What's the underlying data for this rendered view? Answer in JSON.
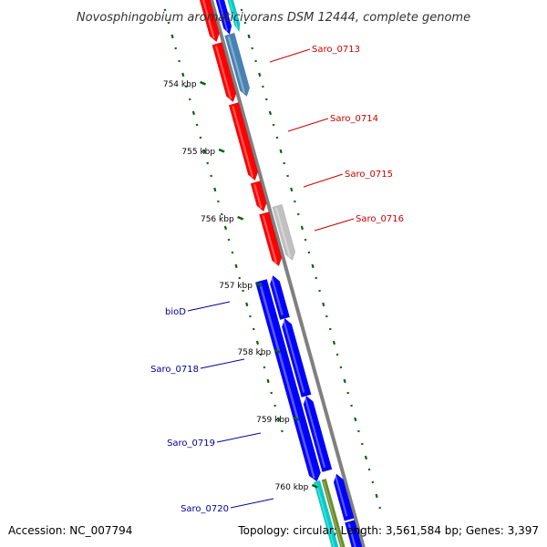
{
  "title": "Novosphingobium aromaticivorans DSM 12444, complete genome",
  "footer": {
    "accession": "Accession: NC_007794",
    "summary": "Topology: circular; Length: 3,561,584 bp; Genes: 3,397"
  },
  "colors": {
    "background": "#ffffff",
    "backbone": "#808080",
    "gene_red": "#ff0000",
    "gene_blue": "#0000ff",
    "gene_steelblue": "#4682b4",
    "gene_gray": "#c0c0c0",
    "gene_cyan": "#00cccc",
    "gene_olive": "#6b8e23",
    "tick_green": "#006400",
    "label_red": "#cc0000",
    "label_blue": "#000099"
  },
  "ticks": [
    {
      "label": "754 kbp"
    },
    {
      "label": "755 kbp"
    },
    {
      "label": "756 kbp"
    },
    {
      "label": "757 kbp"
    },
    {
      "label": "758 kbp"
    },
    {
      "label": "759 kbp"
    },
    {
      "label": "760 kbp"
    }
  ],
  "gene_labels": [
    {
      "name": "Saro_0713",
      "color": "#cc0000"
    },
    {
      "name": "Saro_0714",
      "color": "#cc0000"
    },
    {
      "name": "Saro_0715",
      "color": "#cc0000"
    },
    {
      "name": "Saro_0716",
      "color": "#cc0000"
    },
    {
      "name": "bioD",
      "color": "#000099"
    },
    {
      "name": "Saro_0718",
      "color": "#000099"
    },
    {
      "name": "Saro_0719",
      "color": "#000099"
    },
    {
      "name": "Saro_0720",
      "color": "#000099"
    }
  ]
}
